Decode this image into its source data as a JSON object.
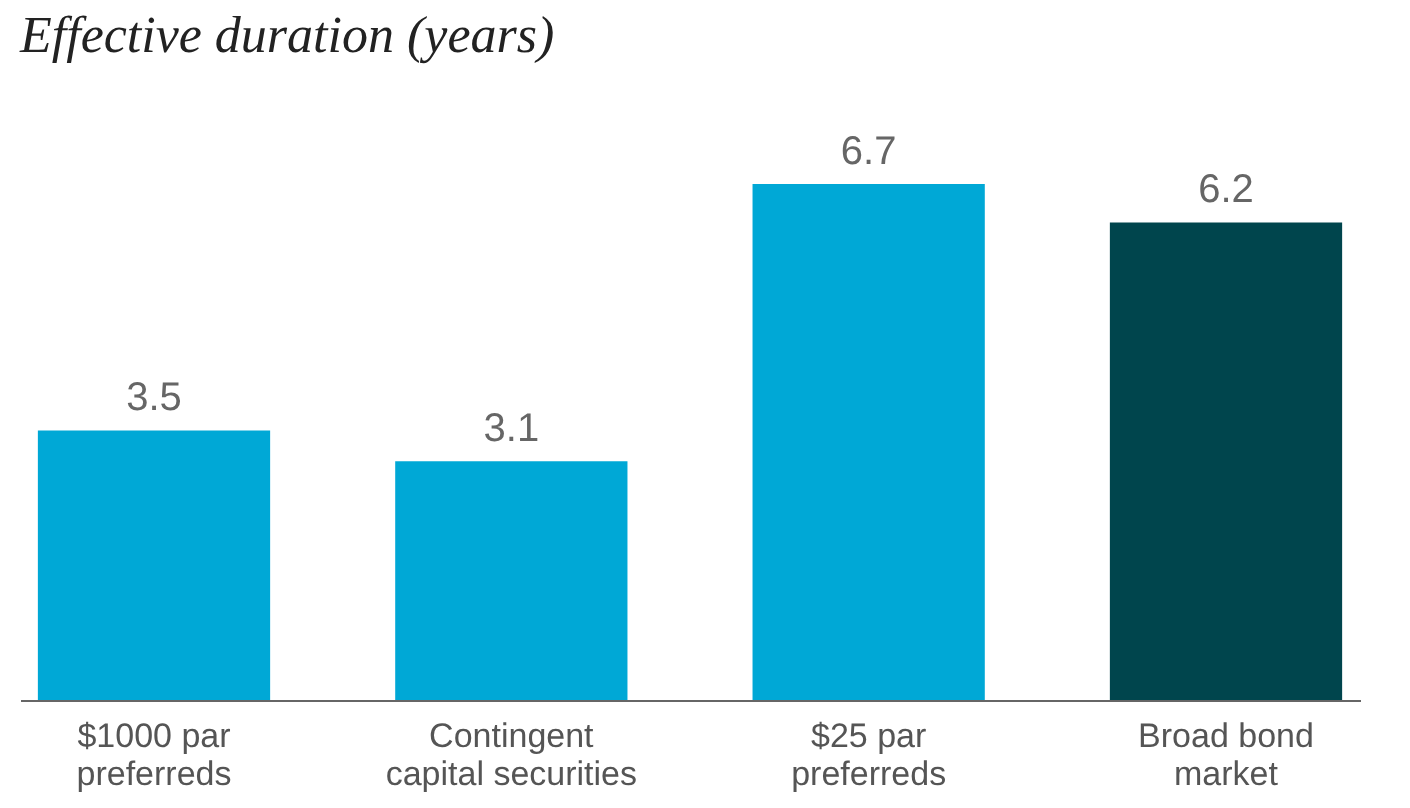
{
  "chart_data": {
    "type": "bar",
    "title": "Effective duration (years)",
    "categories": [
      "$1000 par preferreds",
      "Contingent capital securities",
      "$25 par preferreds",
      "Broad bond market"
    ],
    "values": [
      3.5,
      3.1,
      6.7,
      6.2
    ],
    "colors": [
      "#00a8d6",
      "#00a8d6",
      "#00a8d6",
      "#00454d"
    ],
    "data_labels": true,
    "grid": false
  }
}
